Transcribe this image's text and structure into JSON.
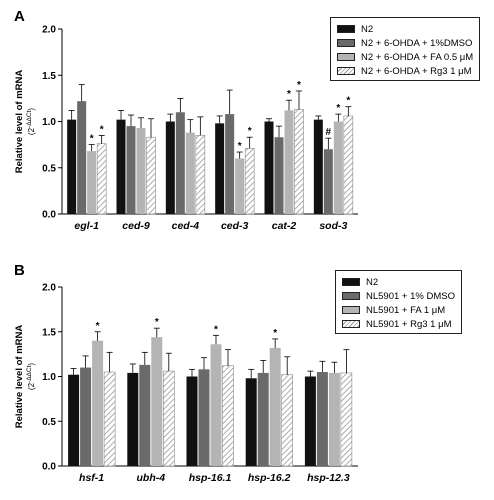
{
  "chart_data": [
    {
      "type": "bar",
      "panel_label": "A",
      "ylabel": "Relative level of mRNA",
      "ylabel_sub": "(2⁻ᐞᐞᶜᵗ)",
      "ylim": [
        0,
        2.0
      ],
      "yticks": [
        "0.0",
        "0.5",
        "1.0",
        "1.5",
        "2.0"
      ],
      "categories": [
        "egl-1",
        "ced-9",
        "ced-4",
        "ced-3",
        "cat-2",
        "sod-3"
      ],
      "legend_position": "top-right",
      "series": [
        {
          "name": "N2",
          "color": "#111111",
          "values": [
            1.02,
            1.02,
            1.0,
            0.98,
            1.0,
            1.02
          ],
          "errors": [
            0.1,
            0.1,
            0.08,
            0.08,
            0.03,
            0.04
          ],
          "marks": [
            "",
            "",
            "",
            "",
            "",
            ""
          ]
        },
        {
          "name": "N2 + 6-OHDA + 1%DMSO",
          "color": "#6a6a6a",
          "values": [
            1.22,
            0.95,
            1.1,
            1.08,
            0.83,
            0.7
          ],
          "errors": [
            0.18,
            0.12,
            0.15,
            0.26,
            0.12,
            0.12
          ],
          "marks": [
            "",
            "",
            "",
            "",
            "",
            "#"
          ]
        },
        {
          "name": "N2 + 6-OHDA + FA 0.5 μM",
          "color": "#b4b4b4",
          "values": [
            0.68,
            0.93,
            0.88,
            0.6,
            1.12,
            1.0
          ],
          "errors": [
            0.07,
            0.11,
            0.14,
            0.07,
            0.11,
            0.08
          ],
          "marks": [
            "*",
            "",
            "",
            "*",
            "*",
            "*"
          ]
        },
        {
          "name": "N2 + 6-OHDA + Rg3 1 μM",
          "color": "hatch",
          "values": [
            0.76,
            0.83,
            0.85,
            0.71,
            1.13,
            1.06
          ],
          "errors": [
            0.09,
            0.2,
            0.2,
            0.12,
            0.2,
            0.1
          ],
          "marks": [
            "*",
            "",
            "",
            "*",
            "*",
            "*"
          ]
        }
      ]
    },
    {
      "type": "bar",
      "panel_label": "B",
      "ylabel": "Relative level of mRNA",
      "ylabel_sub": "(2⁻ᐞᐞᶜᵗ)",
      "ylim": [
        0,
        2.0
      ],
      "yticks": [
        "0.0",
        "0.5",
        "1.0",
        "1.5",
        "2.0"
      ],
      "categories": [
        "hsf-1",
        "ubh-4",
        "hsp-16.1",
        "hsp-16.2",
        "hsp-12.3"
      ],
      "legend_position": "top-right",
      "series": [
        {
          "name": "N2",
          "color": "#111111",
          "values": [
            1.02,
            1.04,
            1.0,
            0.98,
            1.0
          ],
          "errors": [
            0.07,
            0.1,
            0.08,
            0.1,
            0.06
          ],
          "marks": [
            "",
            "",
            "",
            "",
            ""
          ]
        },
        {
          "name": "NL5901 + 1% DMSO",
          "color": "#6a6a6a",
          "values": [
            1.1,
            1.13,
            1.08,
            1.04,
            1.05
          ],
          "errors": [
            0.13,
            0.14,
            0.13,
            0.14,
            0.12
          ],
          "marks": [
            "",
            "",
            "",
            "",
            ""
          ]
        },
        {
          "name": "NL5901 + FA 1 μM",
          "color": "#b4b4b4",
          "values": [
            1.4,
            1.44,
            1.36,
            1.32,
            1.04
          ],
          "errors": [
            0.1,
            0.1,
            0.1,
            0.1,
            0.12
          ],
          "marks": [
            "*",
            "*",
            "*",
            "*",
            ""
          ]
        },
        {
          "name": "NL5901 + Rg3 1 μM",
          "color": "hatch",
          "values": [
            1.05,
            1.06,
            1.12,
            1.02,
            1.04
          ],
          "errors": [
            0.22,
            0.2,
            0.18,
            0.2,
            0.26
          ],
          "marks": [
            "",
            "",
            "",
            "",
            ""
          ]
        }
      ]
    }
  ]
}
